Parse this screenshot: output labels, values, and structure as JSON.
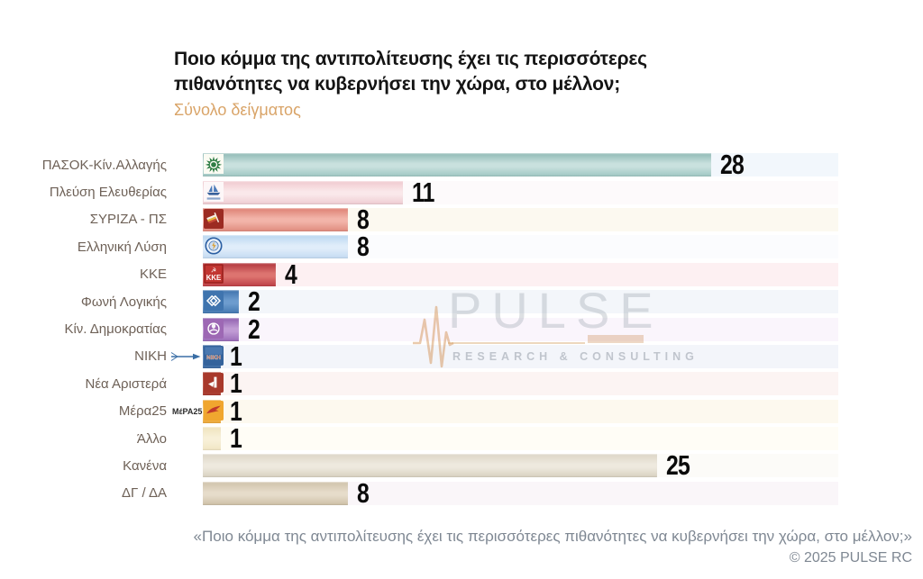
{
  "title": "Ποιο κόμμα της αντιπολίτευσης έχει τις περισσότερες πιθανότητες να κυβερνήσει την χώρα, στο μέλλον;",
  "subtitle": "Σύνολο δείγματος",
  "watermark": {
    "brand": "PULSE",
    "tagline": "RESEARCH & CONSULTING"
  },
  "footer": {
    "question": "«Ποιο κόμμα της αντιπολίτευσης έχει τις περισσότερες πιθανότητες να κυβερνήσει την χώρα, στο μέλλον;»",
    "copyright": "© 2025  PULSE RC"
  },
  "chart_data": {
    "type": "bar",
    "orientation": "horizontal",
    "title": "Ποιο κόμμα της αντιπολίτευσης έχει τις περισσότερες πιθανότητες να κυβερνήσει την χώρα, στο μέλλον;",
    "subtitle": "Σύνολο δείγματος",
    "source": "© 2025 PULSE RC",
    "categories": [
      "ΠΑΣΟΚ-Κίν.Αλλαγής",
      "Πλεύση Ελευθερίας",
      "ΣΥΡΙΖΑ - ΠΣ",
      "Ελληνική Λύση",
      "ΚΚΕ",
      "Φωνή Λογικής",
      "Κίν. Δημοκρατίας",
      "ΝΙΚΗ",
      "Νέα Αριστερά",
      "Μέρα25",
      "Άλλο",
      "Κανένα",
      "ΔΓ / ΔΑ"
    ],
    "values": [
      28,
      11,
      8,
      8,
      4,
      2,
      2,
      1,
      1,
      1,
      1,
      25,
      8
    ],
    "xlim": [
      0,
      35
    ],
    "grid": false,
    "value_labels": "outside-end"
  },
  "rows": [
    {
      "label": "ΠΑΣΟΚ-Κίν.Αλλαγής",
      "value": 28,
      "bar_colors": [
        "#8fb9b5",
        "#c9e1de",
        "#9fc6c2"
      ],
      "track_color": "#f2f7fc",
      "logo": "pasok-sun-icon"
    },
    {
      "label": "Πλεύση Ελευθερίας",
      "value": 11,
      "bar_colors": [
        "#f0c9cf",
        "#fae8ea",
        "#efccd2"
      ],
      "track_color": "#fdfafb",
      "logo": "pleusi-ship-icon"
    },
    {
      "label": "ΣΥΡΙΖΑ - ΠΣ",
      "value": 8,
      "bar_colors": [
        "#dd7f72",
        "#f2b4a9",
        "#df8a7d"
      ],
      "track_color": "#fcf9f0",
      "logo": "syriza-flag-icon"
    },
    {
      "label": "Ελληνική Λύση",
      "value": 8,
      "bar_colors": [
        "#b9d6f0",
        "#e0edfa",
        "#c3daf2"
      ],
      "track_color": "#fbfcfe",
      "logo": "elliniki-lysi-emblem-icon"
    },
    {
      "label": "ΚΚΕ",
      "value": 4,
      "bar_colors": [
        "#b0343b",
        "#dd7470",
        "#bc3f45"
      ],
      "track_color": "#fdf0f2",
      "logo": "kke-emblem-icon"
    },
    {
      "label": "Φωνή Λογικής",
      "value": 2,
      "bar_colors": [
        "#3e72ac",
        "#6d9cce",
        "#4478b0"
      ],
      "track_color": "#f3f6fa",
      "logo": "foni-logikis-diamond-icon"
    },
    {
      "label": "Κίν. Δημοκρατίας",
      "value": 2,
      "bar_colors": [
        "#8f5fae",
        "#c09bd4",
        "#9a6cb8"
      ],
      "track_color": "#faf5fc",
      "logo": "kinima-dimokratias-flower-icon"
    },
    {
      "label": "ΝΙΚΗ",
      "value": 1,
      "bar_colors": [
        "#35639c",
        "#5d87bb",
        "#3d6aa2"
      ],
      "track_color": "#f3f5fa",
      "logo": "niki-emblem-icon",
      "logo_text": "ΝΙΚΗ"
    },
    {
      "label": "Νέα Αριστερά",
      "value": 1,
      "bar_colors": [
        "#a8392c",
        "#bb5244",
        "#a83a2e"
      ],
      "track_color": "#fcf4f3",
      "logo": "nea-aristera-arrow-icon"
    },
    {
      "label": "Μέρα25",
      "value": 1,
      "bar_colors": [
        "#eda22f",
        "#f6c96a",
        "#eda73a"
      ],
      "track_color": "#fdf9ef",
      "logo": "mera25-bird-icon",
      "logo_text": "ΜέΡΑ25"
    },
    {
      "label": "Άλλο",
      "value": 1,
      "bar_colors": [
        "#efe3bd",
        "#f8f0d8",
        "#f1e6c4"
      ],
      "track_color": "#fffdf6",
      "logo": null
    },
    {
      "label": "Κανένα",
      "value": 25,
      "bar_colors": [
        "#dcd5c6",
        "#eee9de",
        "#d8d1c0"
      ],
      "track_color": "#fcfbf8",
      "logo": null
    },
    {
      "label": "ΔΓ / ΔΑ",
      "value": 8,
      "bar_colors": [
        "#cfc2aa",
        "#e6dcca",
        "#cdbfa6"
      ],
      "track_color": "#faf6f9",
      "logo": null
    }
  ]
}
